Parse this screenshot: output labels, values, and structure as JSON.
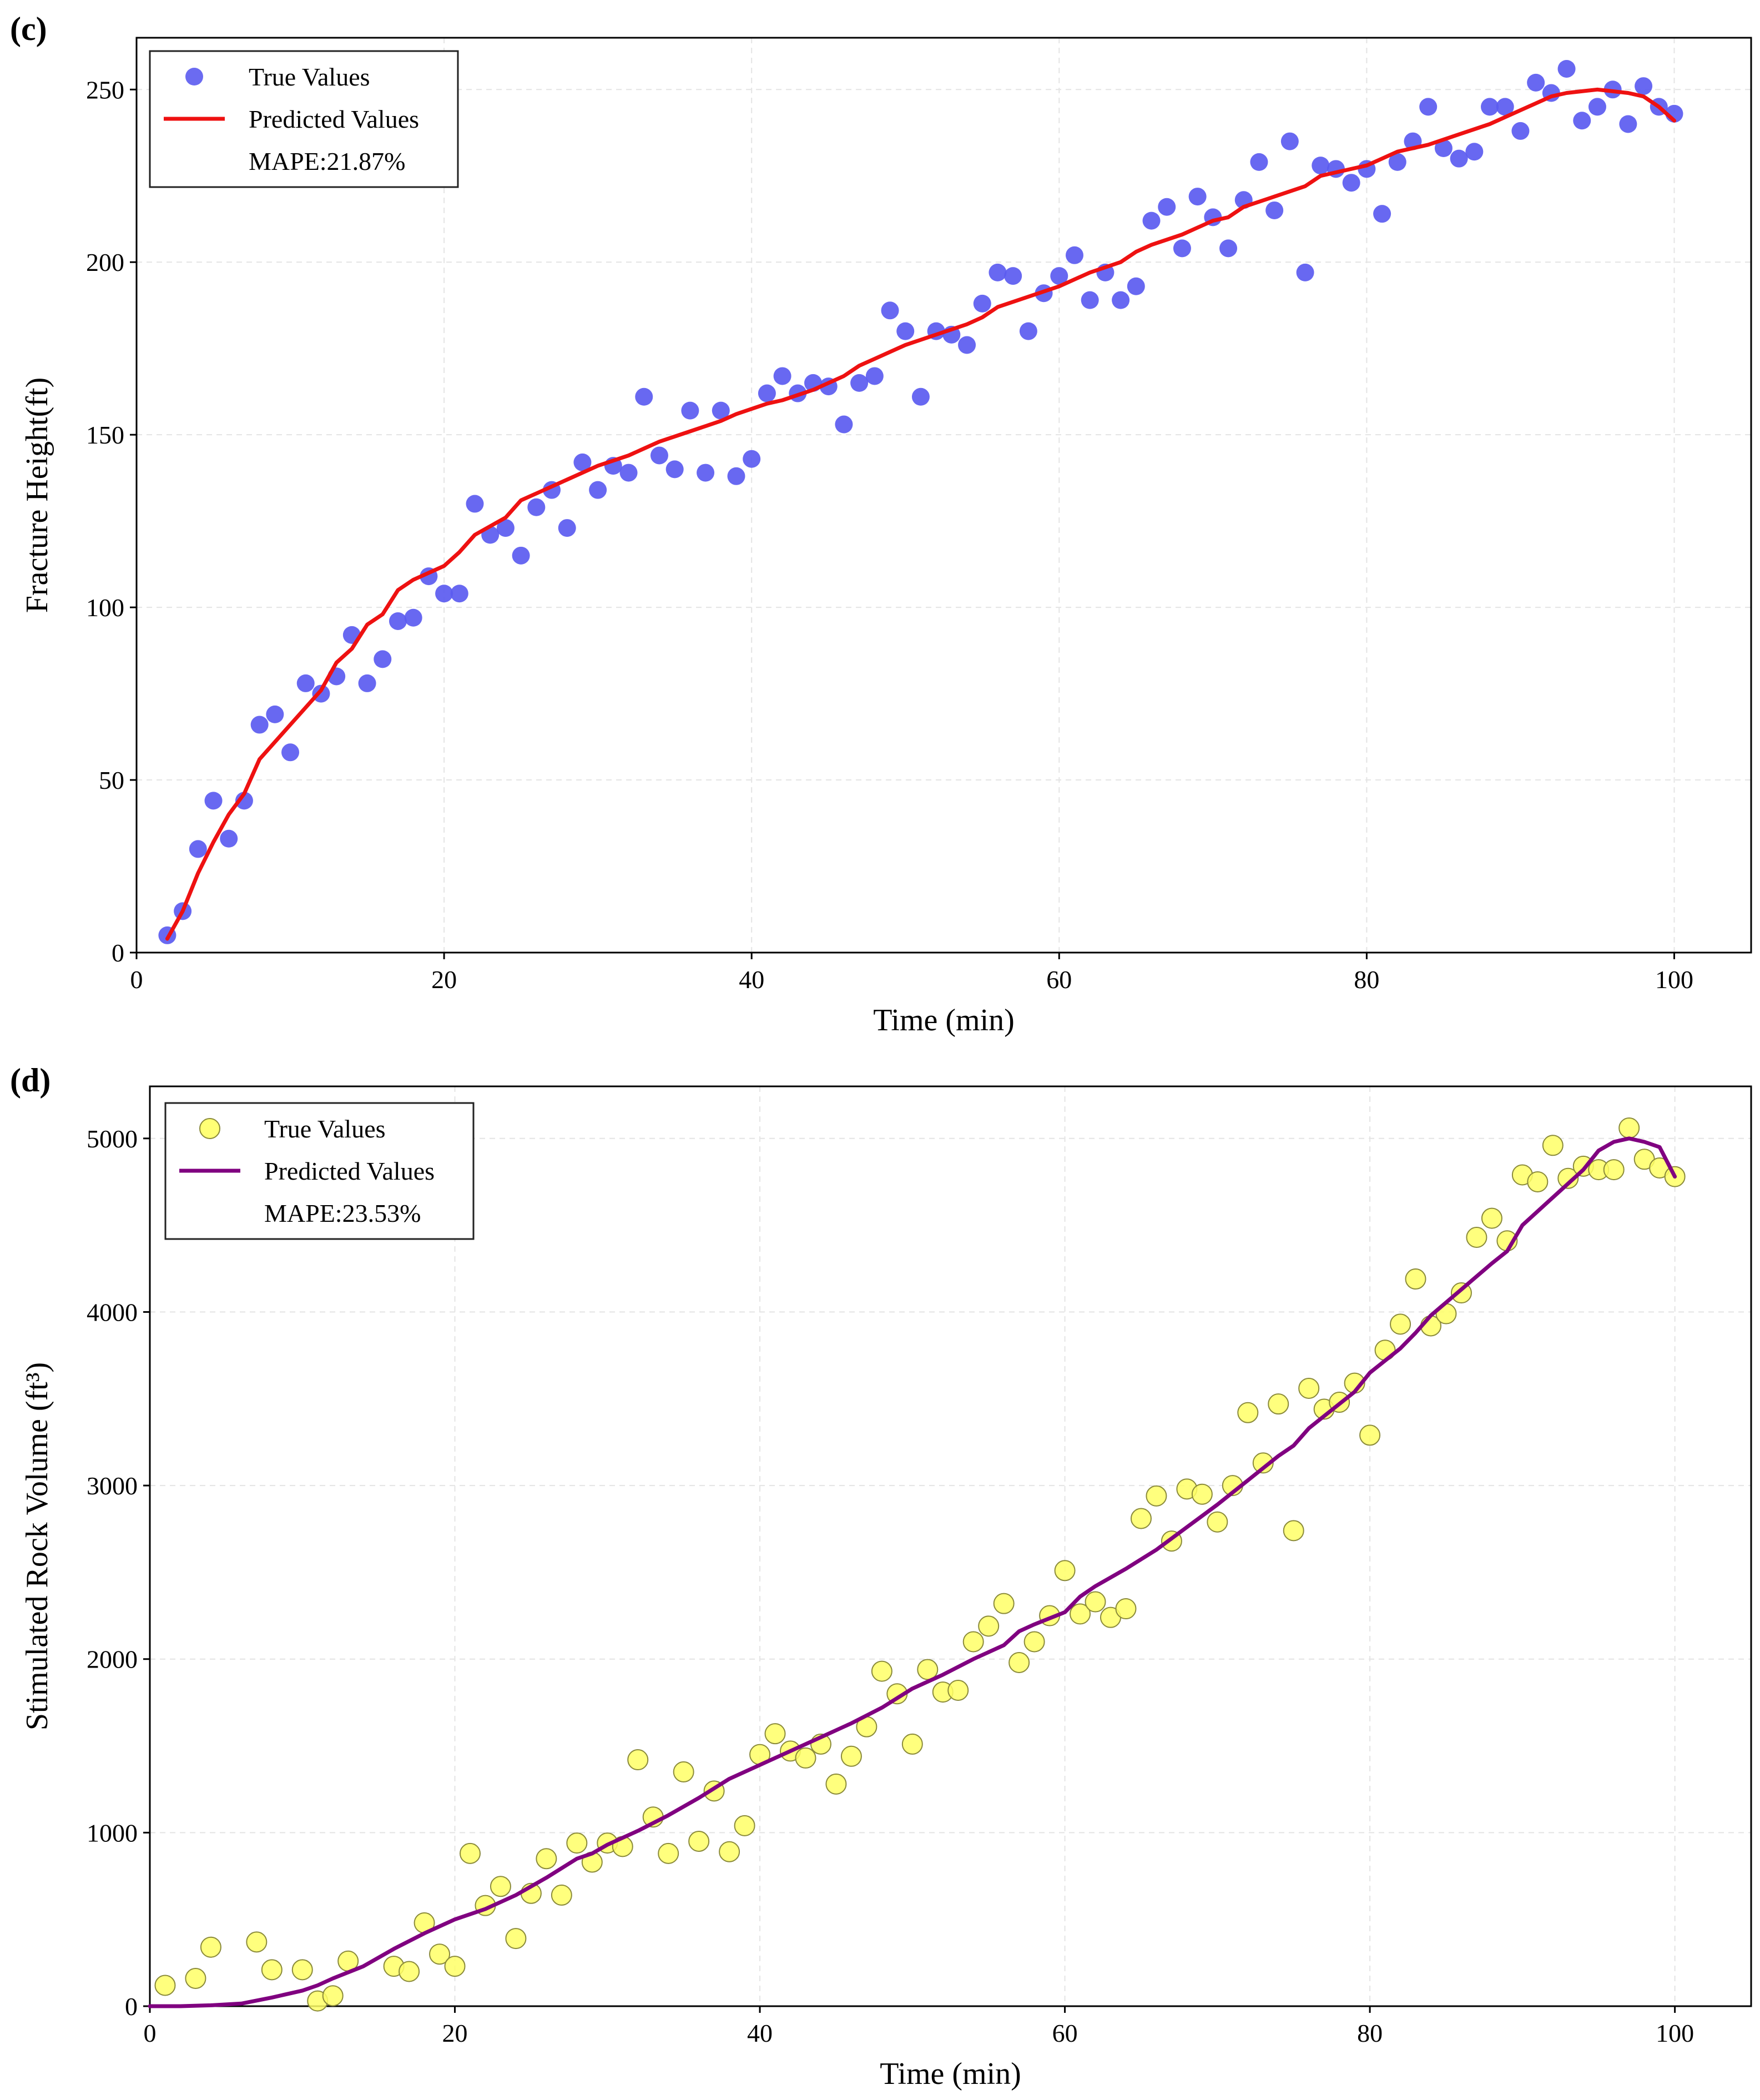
{
  "chart_data": [
    {
      "panel_label": "(c)",
      "type": "scatter",
      "xlabel": "Time (min)",
      "ylabel": "Fracture Height(ft)",
      "xlim": [
        0,
        105
      ],
      "ylim": [
        0,
        265
      ],
      "xticks": [
        0,
        20,
        40,
        60,
        80,
        100
      ],
      "yticks": [
        0,
        50,
        100,
        150,
        200,
        250
      ],
      "grid": true,
      "legend_position": "top-left",
      "legend": {
        "true_label": "True Values",
        "pred_label": "Predicted Values",
        "mape": "MAPE:21.87%"
      },
      "colors": {
        "true": "#5b5bf0",
        "pred": "#ee1111"
      },
      "series": [
        {
          "name": "True Values",
          "type": "scatter",
          "x": [
            2,
            3,
            4,
            5,
            6,
            7,
            8,
            9,
            10,
            11,
            12,
            13,
            14,
            15,
            16,
            17,
            18,
            19,
            20,
            21,
            22,
            23,
            24,
            25,
            26,
            27,
            28,
            29,
            30,
            31,
            32,
            33,
            34,
            35,
            36,
            37,
            38,
            39,
            40,
            41,
            42,
            43,
            44,
            45,
            46,
            47,
            48,
            49,
            50,
            51,
            52,
            53,
            54,
            55,
            56,
            57,
            58,
            59,
            60,
            61,
            62,
            63,
            64,
            65,
            66,
            67,
            68,
            69,
            70,
            71,
            72,
            73,
            74,
            75,
            76,
            77,
            78,
            79,
            80,
            81,
            82,
            83,
            84,
            85,
            86,
            87,
            88,
            89,
            90,
            91,
            92,
            93,
            94,
            95,
            96,
            97,
            98,
            99,
            100
          ],
          "y": [
            5,
            12,
            30,
            44,
            33,
            44,
            66,
            69,
            58,
            78,
            75,
            80,
            92,
            78,
            85,
            96,
            97,
            109,
            104,
            104,
            130,
            121,
            123,
            115,
            129,
            134,
            123,
            142,
            134,
            141,
            139,
            161,
            144,
            140,
            157,
            139,
            157,
            138,
            143,
            162,
            167,
            162,
            165,
            164,
            153,
            165,
            167,
            186,
            180,
            161,
            180,
            179,
            176,
            188,
            197,
            196,
            180,
            191,
            196,
            202,
            189,
            197,
            189,
            193,
            212,
            216,
            204,
            219,
            213,
            204,
            218,
            229,
            215,
            235,
            197,
            228,
            227,
            223,
            227,
            214,
            229,
            235,
            245,
            233,
            230,
            232,
            245,
            245,
            238,
            252,
            249,
            256,
            241,
            245,
            250,
            240,
            251,
            245,
            243
          ]
        },
        {
          "name": "Predicted Values",
          "type": "line",
          "x": [
            2,
            3,
            4,
            5,
            6,
            7,
            8,
            10,
            12,
            13,
            14,
            15,
            16,
            17,
            18,
            20,
            21,
            22,
            24,
            25,
            26,
            28,
            29,
            30,
            32,
            33,
            34,
            36,
            38,
            39,
            41,
            42,
            44,
            46,
            47,
            48,
            50,
            52,
            54,
            55,
            56,
            58,
            60,
            61,
            62,
            64,
            65,
            66,
            68,
            70,
            71,
            72,
            74,
            76,
            77,
            78,
            80,
            81,
            82,
            84,
            86,
            88,
            90,
            91,
            92,
            93,
            94,
            95,
            96,
            97,
            98,
            99,
            100
          ],
          "y": [
            4,
            12,
            23,
            32,
            40,
            46,
            56,
            66,
            76,
            84,
            88,
            95,
            98,
            105,
            108,
            112,
            116,
            121,
            126,
            131,
            133,
            137,
            139,
            141,
            144,
            146,
            148,
            151,
            154,
            156,
            159,
            160,
            163,
            167,
            170,
            172,
            176,
            179,
            182,
            184,
            187,
            190,
            193,
            195,
            197,
            200,
            203,
            205,
            208,
            212,
            213,
            216,
            219,
            222,
            225,
            226,
            228,
            230,
            232,
            234,
            237,
            240,
            244,
            246,
            248,
            249,
            249.5,
            250,
            249.5,
            249,
            248,
            245,
            241
          ]
        }
      ]
    },
    {
      "panel_label": "(d)",
      "type": "scatter",
      "xlabel": "Time (min)",
      "ylabel": "Stimulated Rock Volume (ft³)",
      "xlim": [
        0,
        105
      ],
      "ylim": [
        0,
        5300
      ],
      "xticks": [
        0,
        20,
        40,
        60,
        80,
        100
      ],
      "yticks": [
        0,
        1000,
        2000,
        3000,
        4000,
        5000
      ],
      "grid": true,
      "legend_position": "top-left",
      "legend": {
        "true_label": "True Values",
        "pred_label": "Predicted Values",
        "mape": "MAPE:23.53%"
      },
      "colors": {
        "true": "#ffff66",
        "pred": "#800080"
      },
      "series": [
        {
          "name": "True Values",
          "type": "scatter",
          "x": [
            1,
            3,
            4,
            7,
            8,
            10,
            11,
            12,
            13,
            16,
            17,
            18,
            19,
            20,
            21,
            22,
            23,
            24,
            25,
            26,
            27,
            28,
            29,
            30,
            31,
            32,
            33,
            34,
            35,
            36,
            37,
            38,
            39,
            40,
            41,
            42,
            43,
            44,
            45,
            46,
            47,
            48,
            49,
            50,
            51,
            52,
            53,
            54,
            55,
            56,
            57,
            58,
            59,
            60,
            61,
            62,
            63,
            64,
            65,
            66,
            67,
            68,
            69,
            70,
            71,
            72,
            73,
            74,
            75,
            76,
            77,
            78,
            79,
            80,
            81,
            82,
            83,
            84,
            85,
            86,
            87,
            88,
            89,
            90,
            91,
            92,
            93,
            94,
            95,
            96,
            97,
            98,
            99,
            100
          ],
          "y": [
            120,
            160,
            340,
            370,
            210,
            210,
            30,
            60,
            260,
            230,
            200,
            480,
            300,
            230,
            880,
            580,
            690,
            390,
            650,
            850,
            640,
            940,
            830,
            940,
            920,
            1420,
            1090,
            880,
            1350,
            950,
            1240,
            890,
            1040,
            1450,
            1570,
            1470,
            1430,
            1510,
            1280,
            1440,
            1610,
            1930,
            1800,
            1510,
            1940,
            1810,
            1820,
            2100,
            2190,
            2320,
            1980,
            2100,
            2250,
            2510,
            2260,
            2330,
            2240,
            2290,
            2810,
            2940,
            2680,
            2980,
            2950,
            2790,
            3000,
            3420,
            3130,
            3470,
            2740,
            3560,
            3440,
            3480,
            3590,
            3290,
            3780,
            3930,
            4190,
            3920,
            3990,
            4110,
            4430,
            4540,
            4410,
            4790,
            4750,
            4960,
            4770,
            4840,
            4820,
            4820,
            5060,
            4880,
            4830,
            4780
          ]
        },
        {
          "name": "Predicted Values",
          "type": "line",
          "x": [
            0,
            2,
            4,
            6,
            8,
            10,
            11,
            12,
            14,
            16,
            18,
            19,
            20,
            22,
            24,
            26,
            28,
            29,
            30,
            32,
            34,
            36,
            38,
            40,
            42,
            44,
            46,
            48,
            50,
            52,
            54,
            56,
            57,
            58,
            60,
            61,
            62,
            64,
            66,
            68,
            70,
            72,
            74,
            75,
            76,
            78,
            79,
            80,
            82,
            83,
            84,
            86,
            88,
            89,
            90,
            92,
            94,
            95,
            96,
            97,
            98,
            99,
            100
          ],
          "y": [
            0,
            0,
            5,
            15,
            50,
            90,
            120,
            160,
            230,
            330,
            420,
            460,
            500,
            560,
            640,
            740,
            850,
            880,
            930,
            1010,
            1100,
            1200,
            1310,
            1390,
            1470,
            1550,
            1630,
            1720,
            1830,
            1910,
            2000,
            2080,
            2160,
            2200,
            2270,
            2360,
            2420,
            2520,
            2630,
            2760,
            2890,
            3030,
            3170,
            3230,
            3330,
            3470,
            3540,
            3650,
            3790,
            3880,
            3980,
            4130,
            4280,
            4350,
            4500,
            4660,
            4820,
            4930,
            4980,
            5000,
            4980,
            4950,
            4780
          ]
        }
      ]
    }
  ]
}
